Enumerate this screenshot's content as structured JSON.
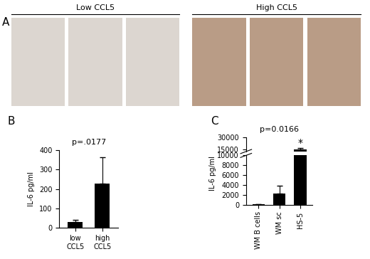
{
  "panel_a": {
    "label": "A",
    "groups": [
      "Low CCL5",
      "High CCL5"
    ]
  },
  "chart_data": [
    {
      "type": "bar",
      "panel": "B",
      "title": "p=.0177",
      "categories": [
        "low\nCCL5",
        "high\nCCL5"
      ],
      "values": [
        30,
        230
      ],
      "errors": [
        12,
        135
      ],
      "color": "#000000",
      "ylabel": "IL-6 pg/ml",
      "ylim": [
        0,
        400
      ],
      "yticks": [
        0,
        100,
        200,
        300,
        400
      ]
    },
    {
      "type": "bar",
      "panel": "C",
      "title": "p=0.0166",
      "categories": [
        "WM B cells",
        "WM sc",
        "HS-5"
      ],
      "values": [
        50,
        2200,
        15000
      ],
      "errors": [
        30,
        1600,
        1500
      ],
      "color": "#000000",
      "ylabel": "IL-6 pg/ml",
      "ylim": [
        [
          0,
          10000
        ],
        [
          12000,
          30000
        ]
      ],
      "yticks": [
        [
          0,
          2000,
          4000,
          6000,
          8000,
          10000
        ],
        [
          15000,
          30000
        ]
      ],
      "annotations": [
        {
          "text": "*",
          "category": "HS-5"
        }
      ]
    }
  ]
}
